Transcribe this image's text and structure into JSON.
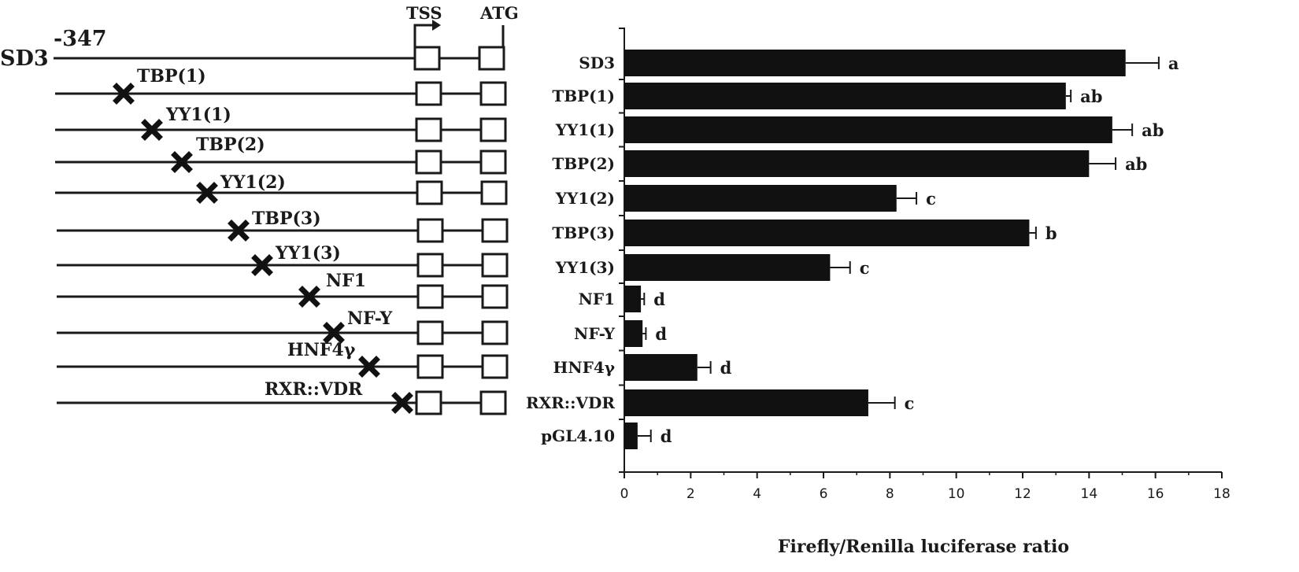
{
  "construct_panel": {
    "full_name": "SD3",
    "start_position": "-347",
    "tss_label": "TSS",
    "atg_label": "ATG",
    "mutations": [
      "TBP(1)",
      "YY1(1)",
      "TBP(2)",
      "YY1(2)",
      "TBP(3)",
      "YY1(3)",
      "NF1",
      "NF-Y",
      "HNF4γ",
      "RXR::VDR"
    ]
  },
  "chart_data": {
    "type": "bar",
    "orientation": "horizontal",
    "categories": [
      "SD3",
      "TBP(1)",
      "YY1(1)",
      "TBP(2)",
      "YY1(2)",
      "TBP(3)",
      "YY1(3)",
      "NF1",
      "NF-Y",
      "HNF4γ",
      "RXR::VDR",
      "pGL4.10"
    ],
    "values": [
      15.1,
      13.3,
      14.7,
      14.0,
      8.2,
      12.2,
      6.2,
      0.5,
      0.55,
      2.2,
      7.35,
      0.4
    ],
    "errors": [
      1.0,
      0.15,
      0.6,
      0.8,
      0.6,
      0.2,
      0.6,
      0.1,
      0.1,
      0.4,
      0.8,
      0.4
    ],
    "significance": [
      "a",
      "ab",
      "ab",
      "ab",
      "c",
      "b",
      "c",
      "d",
      "d",
      "d",
      "c",
      "d"
    ],
    "xlabel": "Firefly/Renilla luciferase ratio",
    "xlim": [
      0,
      18
    ],
    "xticks": [
      0,
      2,
      4,
      6,
      8,
      10,
      12,
      14,
      16,
      18
    ],
    "bar_color": "#111111",
    "grid": false
  }
}
